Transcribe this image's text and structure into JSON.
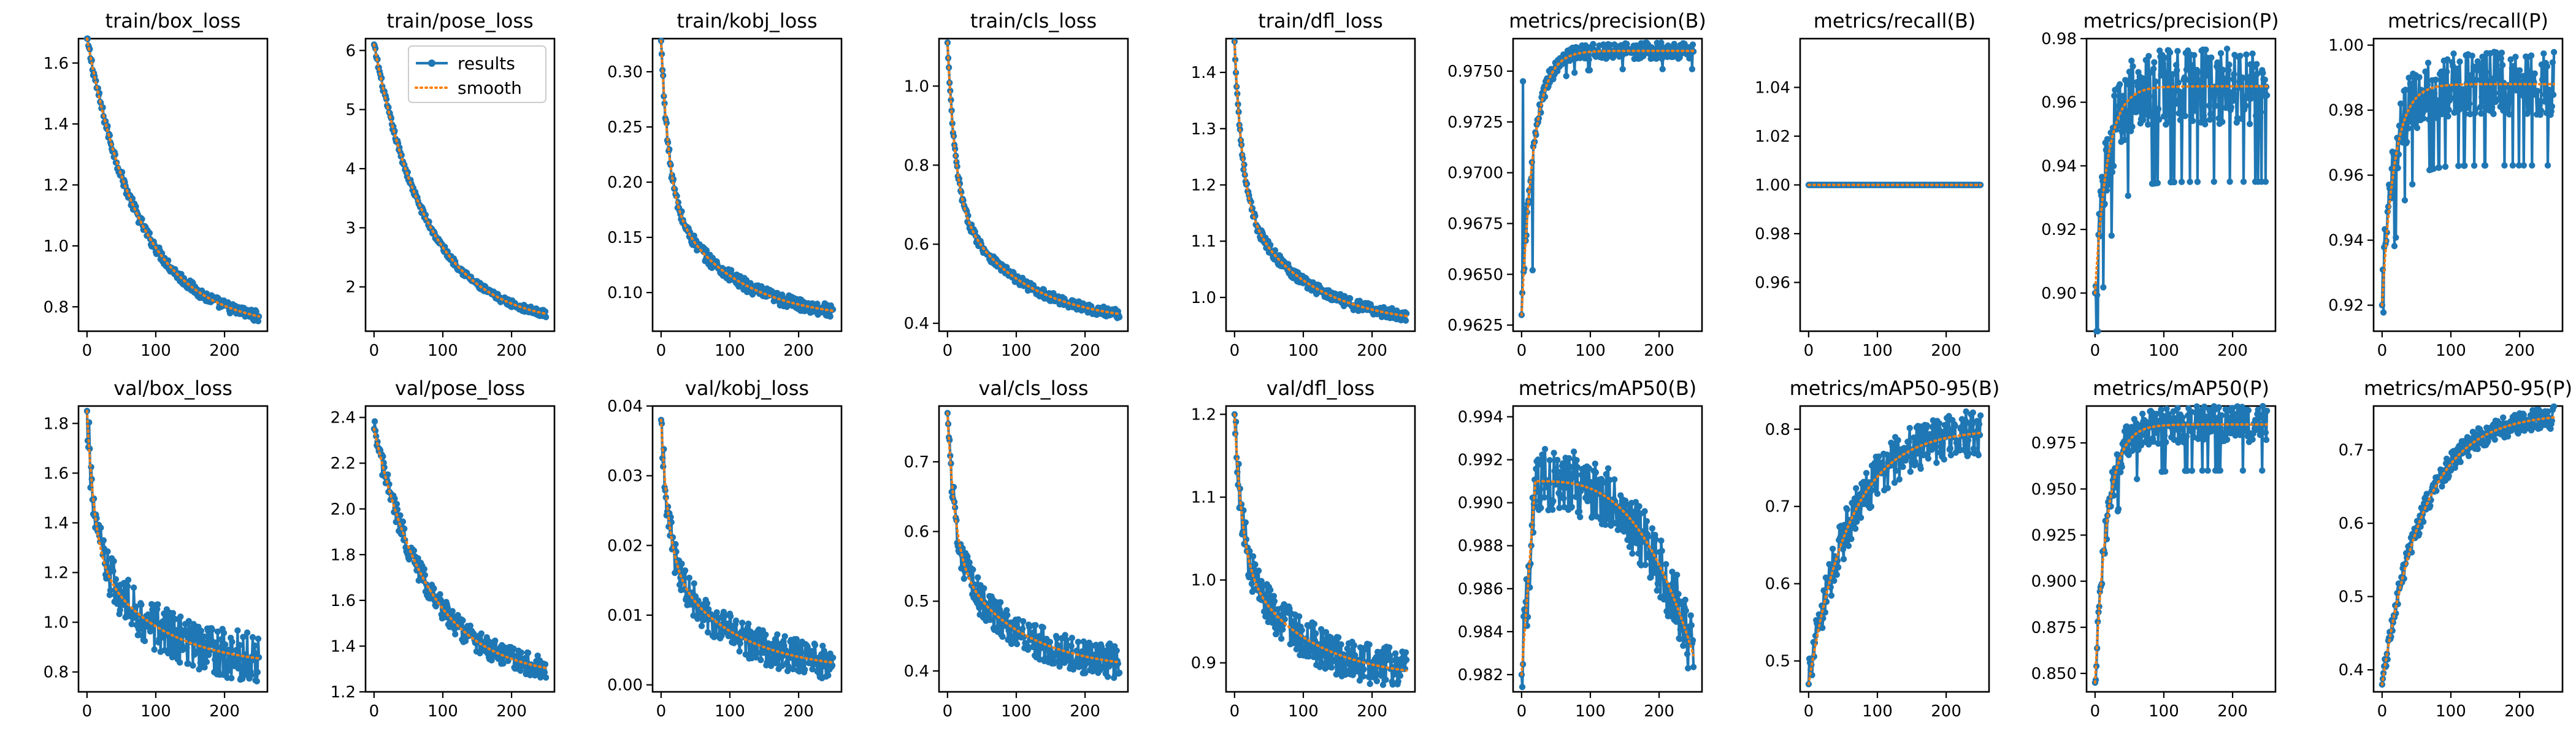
{
  "colors": {
    "results": "#1f77b4",
    "smooth": "#ff7f0e"
  },
  "legend": {
    "results_label": "results",
    "smooth_label": "smooth",
    "placement": "upper-right",
    "panel": "train/pose_loss"
  },
  "chart_data": [
    {
      "type": "line",
      "title": "train/box_loss",
      "xlim": [
        0,
        250
      ],
      "ylim": [
        0.72,
        1.68
      ],
      "xticks": [
        0,
        100,
        200
      ],
      "xtick_labels": [
        "0",
        "100",
        "200"
      ],
      "yticks": [
        0.8,
        1.0,
        1.2,
        1.4,
        1.6
      ],
      "ytick_labels": [
        "0.8",
        "1.0",
        "1.2",
        "1.4",
        "1.6"
      ],
      "start": 1.68,
      "end": 0.73,
      "curve": "decay",
      "noise": 0.018,
      "series": [
        {
          "name": "results"
        },
        {
          "name": "smooth"
        }
      ]
    },
    {
      "type": "line",
      "title": "train/pose_loss",
      "xlim": [
        0,
        250
      ],
      "ylim": [
        1.25,
        6.2
      ],
      "xticks": [
        0,
        100,
        200
      ],
      "xtick_labels": [
        "0",
        "100",
        "200"
      ],
      "yticks": [
        2,
        3,
        4,
        5,
        6
      ],
      "ytick_labels": [
        "2",
        "3",
        "4",
        "5",
        "6"
      ],
      "start": 6.1,
      "end": 1.35,
      "curve": "decay",
      "noise": 0.06,
      "series": [
        {
          "name": "results"
        },
        {
          "name": "smooth"
        }
      ]
    },
    {
      "type": "line",
      "title": "train/kobj_loss",
      "xlim": [
        0,
        250
      ],
      "ylim": [
        0.065,
        0.33
      ],
      "xticks": [
        0,
        100,
        200
      ],
      "xtick_labels": [
        "0",
        "100",
        "200"
      ],
      "yticks": [
        0.1,
        0.15,
        0.2,
        0.25,
        0.3
      ],
      "ytick_labels": [
        "0.10",
        "0.15",
        "0.20",
        "0.25",
        "0.30"
      ],
      "start": 0.328,
      "end": 0.075,
      "curve": "fastdecay",
      "noise": 0.006,
      "series": [
        {
          "name": "results"
        },
        {
          "name": "smooth"
        }
      ]
    },
    {
      "type": "line",
      "title": "train/cls_loss",
      "xlim": [
        0,
        250
      ],
      "ylim": [
        0.38,
        1.12
      ],
      "xticks": [
        0,
        100,
        200
      ],
      "xtick_labels": [
        "0",
        "100",
        "200"
      ],
      "yticks": [
        0.4,
        0.6,
        0.8,
        1.0
      ],
      "ytick_labels": [
        "0.4",
        "0.6",
        "0.8",
        "1.0"
      ],
      "start": 1.11,
      "end": 0.4,
      "curve": "fastdecay",
      "noise": 0.012,
      "series": [
        {
          "name": "results"
        },
        {
          "name": "smooth"
        }
      ]
    },
    {
      "type": "line",
      "title": "train/dfl_loss",
      "xlim": [
        0,
        250
      ],
      "ylim": [
        0.94,
        1.46
      ],
      "xticks": [
        0,
        100,
        200
      ],
      "xtick_labels": [
        "0",
        "100",
        "200"
      ],
      "yticks": [
        1.0,
        1.1,
        1.2,
        1.3,
        1.4
      ],
      "ytick_labels": [
        "1.0",
        "1.1",
        "1.2",
        "1.3",
        "1.4"
      ],
      "start": 1.455,
      "end": 0.95,
      "curve": "fastdecay",
      "noise": 0.01,
      "series": [
        {
          "name": "results"
        },
        {
          "name": "smooth"
        }
      ]
    },
    {
      "type": "line",
      "title": "metrics/precision(B)",
      "xlim": [
        0,
        250
      ],
      "ylim": [
        0.9622,
        0.9766
      ],
      "xticks": [
        0,
        100,
        200
      ],
      "xtick_labels": [
        "0",
        "100",
        "200"
      ],
      "yticks": [
        0.9625,
        0.965,
        0.9675,
        0.97,
        0.9725,
        0.975
      ],
      "ytick_labels": [
        "0.9625",
        "0.9650",
        "0.9675",
        "0.9700",
        "0.9725",
        "0.9750"
      ],
      "start": 0.963,
      "end": 0.976,
      "curve": "riseplateau",
      "noise": 0.0004,
      "series": [
        {
          "name": "results"
        },
        {
          "name": "smooth"
        }
      ]
    },
    {
      "type": "line",
      "title": "metrics/recall(B)",
      "xlim": [
        0,
        250
      ],
      "ylim": [
        0.94,
        1.06
      ],
      "xticks": [
        0,
        100,
        200
      ],
      "xtick_labels": [
        "0",
        "100",
        "200"
      ],
      "yticks": [
        0.96,
        0.98,
        1.0,
        1.02,
        1.04
      ],
      "ytick_labels": [
        "0.96",
        "0.98",
        "1.00",
        "1.02",
        "1.04"
      ],
      "start": 1.0,
      "end": 1.0,
      "curve": "flat",
      "noise": 0,
      "series": [
        {
          "name": "results"
        },
        {
          "name": "smooth"
        }
      ]
    },
    {
      "type": "line",
      "title": "metrics/precision(P)",
      "xlim": [
        0,
        250
      ],
      "ylim": [
        0.888,
        0.98
      ],
      "xticks": [
        0,
        100,
        200
      ],
      "xtick_labels": [
        "0",
        "100",
        "200"
      ],
      "yticks": [
        0.9,
        0.92,
        0.94,
        0.96,
        0.98
      ],
      "ytick_labels": [
        "0.90",
        "0.92",
        "0.94",
        "0.96",
        "0.98"
      ],
      "start": 0.9,
      "end": 0.965,
      "curve": "riseplateau",
      "noise": 0.012,
      "series": [
        {
          "name": "results"
        },
        {
          "name": "smooth"
        }
      ]
    },
    {
      "type": "line",
      "title": "metrics/recall(P)",
      "xlim": [
        0,
        250
      ],
      "ylim": [
        0.912,
        1.002
      ],
      "xticks": [
        0,
        100,
        200
      ],
      "xtick_labels": [
        "0",
        "100",
        "200"
      ],
      "yticks": [
        0.92,
        0.94,
        0.96,
        0.98,
        1.0
      ],
      "ytick_labels": [
        "0.92",
        "0.94",
        "0.96",
        "0.98",
        "1.00"
      ],
      "start": 0.92,
      "end": 0.988,
      "curve": "riseplateau",
      "noise": 0.01,
      "series": [
        {
          "name": "results"
        },
        {
          "name": "smooth"
        }
      ]
    },
    {
      "type": "line",
      "title": "val/box_loss",
      "xlim": [
        0,
        250
      ],
      "ylim": [
        0.72,
        1.87
      ],
      "xticks": [
        0,
        100,
        200
      ],
      "xtick_labels": [
        "0",
        "100",
        "200"
      ],
      "yticks": [
        0.8,
        1.0,
        1.2,
        1.4,
        1.6,
        1.8
      ],
      "ytick_labels": [
        "0.8",
        "1.0",
        "1.2",
        "1.4",
        "1.6",
        "1.8"
      ],
      "start": 1.85,
      "end": 0.82,
      "curve": "fastdecay",
      "noise": 0.1,
      "series": [
        {
          "name": "results"
        },
        {
          "name": "smooth"
        }
      ]
    },
    {
      "type": "line",
      "title": "val/pose_loss",
      "xlim": [
        0,
        250
      ],
      "ylim": [
        1.2,
        2.45
      ],
      "xticks": [
        0,
        100,
        200
      ],
      "xtick_labels": [
        "0",
        "100",
        "200"
      ],
      "yticks": [
        1.2,
        1.4,
        1.6,
        1.8,
        2.0,
        2.2,
        2.4
      ],
      "ytick_labels": [
        "1.2",
        "1.4",
        "1.6",
        "1.8",
        "2.0",
        "2.2",
        "2.4"
      ],
      "start": 2.35,
      "end": 1.26,
      "curve": "decay",
      "noise": 0.05,
      "series": [
        {
          "name": "results"
        },
        {
          "name": "smooth"
        }
      ]
    },
    {
      "type": "line",
      "title": "val/kobj_loss",
      "xlim": [
        0,
        250
      ],
      "ylim": [
        -0.001,
        0.04
      ],
      "xticks": [
        0,
        100,
        200
      ],
      "xtick_labels": [
        "0",
        "100",
        "200"
      ],
      "yticks": [
        0.0,
        0.01,
        0.02,
        0.03,
        0.04
      ],
      "ytick_labels": [
        "0.00",
        "0.01",
        "0.02",
        "0.03",
        "0.04"
      ],
      "start": 0.038,
      "end": 0.002,
      "curve": "fastdecay",
      "noise": 0.0025,
      "series": [
        {
          "name": "results"
        },
        {
          "name": "smooth"
        }
      ]
    },
    {
      "type": "line",
      "title": "val/cls_loss",
      "xlim": [
        0,
        250
      ],
      "ylim": [
        0.37,
        0.78
      ],
      "xticks": [
        0,
        100,
        200
      ],
      "xtick_labels": [
        "0",
        "100",
        "200"
      ],
      "yticks": [
        0.4,
        0.5,
        0.6,
        0.7
      ],
      "ytick_labels": [
        "0.4",
        "0.5",
        "0.6",
        "0.7"
      ],
      "start": 0.77,
      "end": 0.4,
      "curve": "fastdecay",
      "noise": 0.025,
      "series": [
        {
          "name": "results"
        },
        {
          "name": "smooth"
        }
      ]
    },
    {
      "type": "line",
      "title": "val/dfl_loss",
      "xlim": [
        0,
        250
      ],
      "ylim": [
        0.865,
        1.21
      ],
      "xticks": [
        0,
        100,
        200
      ],
      "xtick_labels": [
        "0",
        "100",
        "200"
      ],
      "yticks": [
        0.9,
        1.0,
        1.1,
        1.2
      ],
      "ytick_labels": [
        "0.9",
        "1.0",
        "1.1",
        "1.2"
      ],
      "start": 1.2,
      "end": 0.88,
      "curve": "fastdecay",
      "noise": 0.025,
      "series": [
        {
          "name": "results"
        },
        {
          "name": "smooth"
        }
      ]
    },
    {
      "type": "line",
      "title": "metrics/mAP50(B)",
      "xlim": [
        0,
        250
      ],
      "ylim": [
        0.9812,
        0.9945
      ],
      "xticks": [
        0,
        100,
        200
      ],
      "xtick_labels": [
        "0",
        "100",
        "200"
      ],
      "yticks": [
        0.982,
        0.984,
        0.986,
        0.988,
        0.99,
        0.992,
        0.994
      ],
      "ytick_labels": [
        "0.982",
        "0.984",
        "0.986",
        "0.988",
        "0.990",
        "0.992",
        "0.994"
      ],
      "start": 0.982,
      "end": 0.987,
      "curve": "humpdown",
      "noise": 0.0015,
      "series": [
        {
          "name": "results"
        },
        {
          "name": "smooth"
        }
      ]
    },
    {
      "type": "line",
      "title": "metrics/mAP50-95(B)",
      "xlim": [
        0,
        250
      ],
      "ylim": [
        0.46,
        0.83
      ],
      "xticks": [
        0,
        100,
        200
      ],
      "xtick_labels": [
        "0",
        "100",
        "200"
      ],
      "yticks": [
        0.5,
        0.6,
        0.7,
        0.8
      ],
      "ytick_labels": [
        "0.5",
        "0.6",
        "0.7",
        "0.8"
      ],
      "start": 0.47,
      "end": 0.8,
      "curve": "rise",
      "noise": 0.03,
      "series": [
        {
          "name": "results"
        },
        {
          "name": "smooth"
        }
      ]
    },
    {
      "type": "line",
      "title": "metrics/mAP50(P)",
      "xlim": [
        0,
        250
      ],
      "ylim": [
        0.84,
        0.995
      ],
      "xticks": [
        0,
        100,
        200
      ],
      "xtick_labels": [
        "0",
        "100",
        "200"
      ],
      "yticks": [
        0.85,
        0.875,
        0.9,
        0.925,
        0.95,
        0.975
      ],
      "ytick_labels": [
        "0.850",
        "0.875",
        "0.900",
        "0.925",
        "0.950",
        "0.975"
      ],
      "start": 0.845,
      "end": 0.985,
      "curve": "riseplateau",
      "noise": 0.01,
      "series": [
        {
          "name": "results"
        },
        {
          "name": "smooth"
        }
      ]
    },
    {
      "type": "line",
      "title": "metrics/mAP50-95(P)",
      "xlim": [
        0,
        250
      ],
      "ylim": [
        0.37,
        0.76
      ],
      "xticks": [
        0,
        100,
        200
      ],
      "xtick_labels": [
        "0",
        "100",
        "200"
      ],
      "yticks": [
        0.4,
        0.5,
        0.6,
        0.7
      ],
      "ytick_labels": [
        "0.4",
        "0.5",
        "0.6",
        "0.7"
      ],
      "start": 0.38,
      "end": 0.75,
      "curve": "rise",
      "noise": 0.015,
      "series": [
        {
          "name": "results"
        },
        {
          "name": "smooth"
        }
      ]
    }
  ]
}
